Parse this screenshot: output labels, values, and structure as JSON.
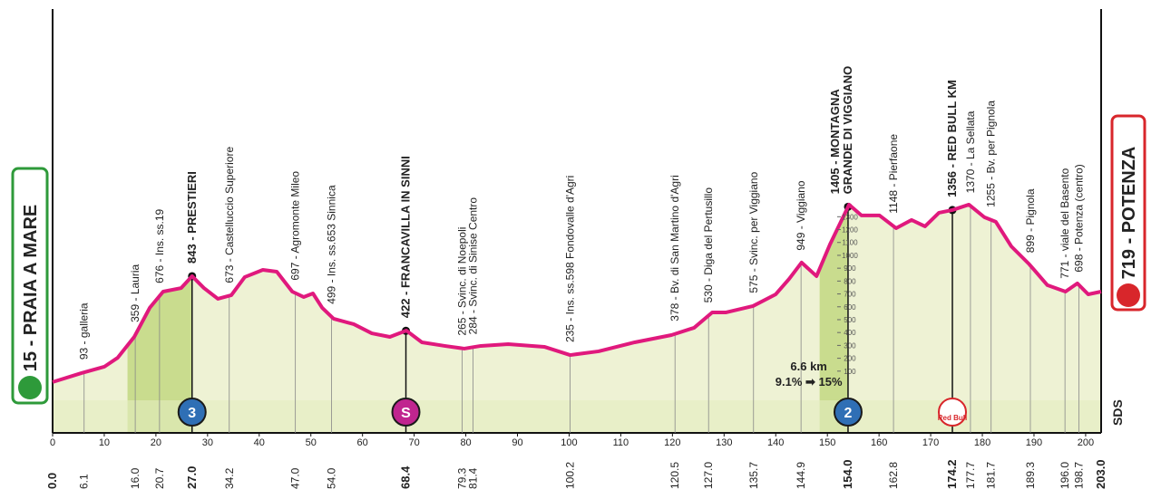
{
  "chart_data": {
    "type": "profile",
    "start": "15 - PRAIA A MARE",
    "finish": "719 - POTENZA",
    "logo": "SDS",
    "climb_note": [
      "6.6 km",
      "9.1% ➡ 15%"
    ],
    "color": "#e0197d",
    "fill": "#eef2d4",
    "climb_color": "#c9dc8e",
    "xlim": [
      0,
      203
    ],
    "xticks": [
      0,
      10,
      20,
      30,
      40,
      50,
      60,
      70,
      80,
      90,
      100,
      110,
      120,
      130,
      140,
      150,
      160,
      170,
      180,
      190,
      200
    ],
    "ylim": [
      -380,
      2900
    ],
    "yticks": [
      100,
      200,
      300,
      400,
      500,
      600,
      700,
      800,
      900,
      1000,
      1100,
      1200,
      1300
    ],
    "climbs": [
      {
        "start": 14.5,
        "end": 27
      },
      {
        "start": 148.5,
        "end": 154
      }
    ],
    "profile": {
      "x": [
        0,
        5.6,
        10,
        12.6,
        15.8,
        18.8,
        21.4,
        24.9,
        27,
        29.3,
        32,
        34.6,
        37.2,
        40.7,
        43.4,
        46.4,
        48.6,
        50.4,
        52.2,
        54.4,
        58.3,
        61.8,
        65.3,
        68.5,
        71.5,
        75.9,
        79.7,
        82.9,
        88.2,
        95.2,
        100.2,
        105.7,
        112.7,
        119.8,
        124.2,
        127.7,
        130.3,
        135.6,
        140,
        142.6,
        145,
        147.9,
        150.5,
        154.2,
        156.6,
        160.1,
        163.3,
        166.3,
        168.9,
        171.6,
        174.2,
        177.4,
        180.4,
        182.6,
        185.6,
        189.1,
        192.6,
        196.1,
        198.4,
        200.5,
        203
      ],
      "y": [
        15,
        85,
        134,
        204,
        366,
        592,
        718,
        746,
        838,
        746,
        662,
        690,
        831,
        887,
        873,
        718,
        676,
        704,
        592,
        507,
        465,
        394,
        366,
        415,
        324,
        296,
        275,
        296,
        310,
        289,
        225,
        254,
        324,
        380,
        437,
        556,
        556,
        606,
        697,
        817,
        944,
        838,
        1085,
        1394,
        1310,
        1310,
        1211,
        1275,
        1225,
        1331,
        1352,
        1394,
        1296,
        1261,
        1070,
        930,
        768,
        718,
        782,
        697,
        718
      ]
    },
    "waypoints": [
      {
        "km": {
          "value": 0,
          "label": "0.0"
        },
        "bold": true
      },
      {
        "km": 6.1,
        "label": "93 - galleria"
      },
      {
        "km": {
          "value": 16,
          "label": "16.0"
        },
        "label": "359 - Lauria"
      },
      {
        "km": 20.7,
        "label": "676 - Ins. ss.19"
      },
      {
        "km": {
          "value": 27,
          "label": "27.0"
        },
        "label": "843 - PRESTIERI",
        "bold": true,
        "badge": "3",
        "badge_color": "#2f6fb5"
      },
      {
        "km": 34.2,
        "label": "673 - Castelluccio Superiore"
      },
      {
        "km": {
          "value": 47,
          "label": "47.0"
        },
        "label": "697 - Agromonte Mileo"
      },
      {
        "km": {
          "value": 54,
          "label": "54.0"
        },
        "label": "499 - Ins. ss.653 Sinnica"
      },
      {
        "km": 68.4,
        "label": "422 - FRANCAVILLA IN SINNI",
        "bold": true,
        "badge": "S",
        "badge_color": "#c0258f"
      },
      {
        "km": 79.3,
        "label": "265 - Svinc. di Noepoli"
      },
      {
        "km": 81.4,
        "label": "284 - Svinc. di Sinise Centro"
      },
      {
        "km": 100.2,
        "label": "235 - Ins. ss.598 Fondovalle d'Agri"
      },
      {
        "km": 120.5,
        "label": "378 - Bv. di San Martino d'Agri"
      },
      {
        "km": {
          "value": 127,
          "label": "127.0"
        },
        "label": "530 - Diga del Pertusillo"
      },
      {
        "km": 135.7,
        "label": "575 - Svinc. per Viggiano"
      },
      {
        "km": 144.9,
        "label": "949 - Viggiano"
      },
      {
        "km": {
          "value": 154,
          "label": "154.0"
        },
        "label": [
          "1405 - MONTAGNA",
          "GRANDE DI VIGGIANO"
        ],
        "bold": true,
        "badge": "2",
        "badge_color": "#2f6fb5"
      },
      {
        "km": 162.8,
        "label": "1148 - Pierfaone"
      },
      {
        "km": 174.2,
        "label": "1356 - RED BULL KM",
        "bold": true,
        "badge": "Red Bull",
        "badge_color": "#ffffff"
      },
      {
        "km": 177.7,
        "label": "1370 - La Sellata"
      },
      {
        "km": 181.7,
        "label": "1255 - Bv. per Pignola"
      },
      {
        "km": 189.3,
        "label": "899 - Pignola"
      },
      {
        "km": {
          "value": 196,
          "label": "196.0"
        },
        "label": "771 - viale del Basento"
      },
      {
        "km": 198.7,
        "label": "698 - Potenza (centro)"
      },
      {
        "km": {
          "value": 203,
          "label": "203.0"
        },
        "bold": true
      }
    ]
  }
}
